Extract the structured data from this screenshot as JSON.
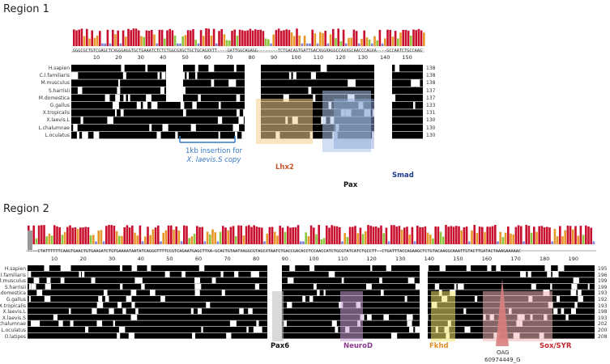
{
  "region1": {
    "title": "Region 1",
    "consensus": "GGGCGCTGTCGAGCTCXGGGAGGTGCTGAAATCTCTCTGGCGXGCTGCTGCAGXXTT----GATTGGCAGAGG--------TCTGACAGTGATTGACXGGXAGGCCAXXGCAACCCAGXA----GCCAATCTGCCAAGTCCAATAGCAAATC",
    "ticks": [
      "10",
      "20",
      "30",
      "40",
      "50",
      "60",
      "70",
      "80",
      "90",
      "100",
      "110",
      "120",
      "130",
      "140",
      "150"
    ],
    "species": [
      "H.sapien",
      "C.l.familiaris",
      "M.musculus",
      "S.harrisii",
      "M.domestica",
      "G.gallus",
      "X.tropicalis",
      "X.laevis.L",
      "L.chalumnae",
      "L.oculatus"
    ],
    "counts": [
      "138",
      "138",
      "138",
      "137",
      "137",
      "133",
      "131",
      "130",
      "130",
      "130"
    ],
    "insertion_note_line1": "1kb insertion for",
    "insertion_note_line2": "X. laevis.S copy",
    "labels": {
      "lhx2": "Lhx2",
      "pax": "Pax",
      "smad": "Smad"
    }
  },
  "region2": {
    "title": "Region 2",
    "consensus": "----CTATTTTTTCAAGTGAACTGTGAAGATCTGTGAAAATAATATCAGGGTTTTCCGTCAGAATGAGCTTXA-GCACTGTAATXAGGCGTAGCXTAATCTGACCGACACCTCCAACCATCTGCGTATCATCTGCCTT--CTGATTTACCAGAAGCTCTGTACAAGGCAAATTGTACTTGATACTAAAGAAAAAC",
    "ticks": [
      "10",
      "20",
      "30",
      "40",
      "50",
      "60",
      "70",
      "80",
      "90",
      "100",
      "110",
      "120",
      "130",
      "140",
      "150",
      "160",
      "170",
      "180",
      "190"
    ],
    "species": [
      "H.sapien",
      "C.l.familiaris",
      "M.musculus",
      "S.harrisii",
      "M.domestica",
      "G.gallus",
      "X.tropicalis",
      "X.laevis.L",
      "X.laevis.S",
      "L.chalumnae",
      "L.oculatus",
      "O.latipes"
    ],
    "counts": [
      "195",
      "196",
      "199",
      "199",
      "193",
      "192",
      "193",
      "198",
      "193",
      "202",
      "200",
      "208"
    ],
    "labels": {
      "pax6": "Pax6",
      "neurod": "NeuroD",
      "fkhd": "Fkhd",
      "sox": "Sox/SYR"
    },
    "snp_top": "OAG",
    "snp_bottom": "60974449_G"
  },
  "colors": {
    "red": "#c8102e",
    "orange": "#e8962a",
    "green": "#8cc63f",
    "blue": "#7f7fd5",
    "lhx2": "#c8542c",
    "smad": "#1f3a8a",
    "neurod": "#8a3b8f",
    "fkhd": "#e0902a",
    "sox": "#c1272d",
    "note": "#3a78c4"
  }
}
